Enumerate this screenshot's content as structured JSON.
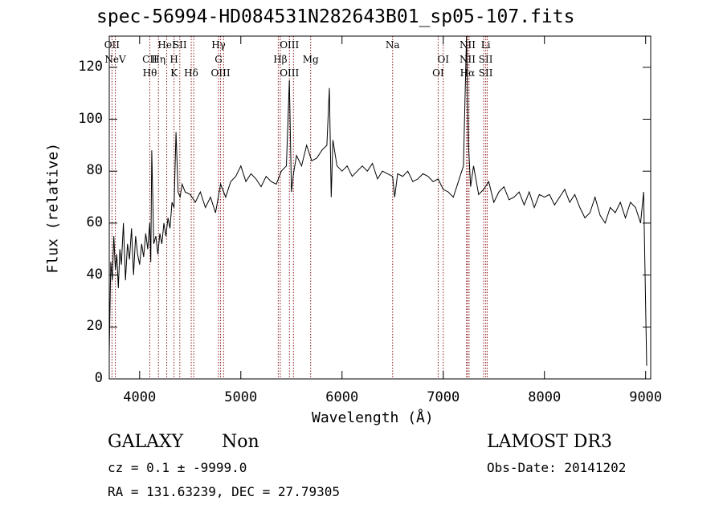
{
  "chart_data": {
    "type": "line",
    "title": "spec-56994-HD084531N282643B01_sp05-107.fits",
    "xlabel": "Wavelength (Å)",
    "ylabel": "Flux (relative)",
    "xlim": [
      3700,
      9050
    ],
    "ylim": [
      0,
      132
    ],
    "x_ticks": [
      4000,
      5000,
      6000,
      7000,
      8000,
      9000
    ],
    "y_ticks": [
      0,
      20,
      40,
      60,
      80,
      100,
      120
    ],
    "grid": false,
    "line_color": "#000000",
    "marker_color": "#8b1a1a",
    "series": [
      {
        "x": [
          3700,
          3715,
          3730,
          3745,
          3760,
          3775,
          3790,
          3805,
          3820,
          3840,
          3860,
          3880,
          3900,
          3920,
          3940,
          3960,
          3980,
          4000,
          4020,
          4040,
          4060,
          4080,
          4100,
          4110,
          4120,
          4140,
          4160,
          4180,
          4200,
          4220,
          4240,
          4260,
          4280,
          4300,
          4320,
          4340,
          4360,
          4380,
          4400,
          4420,
          4450,
          4500,
          4550,
          4600,
          4650,
          4700,
          4750,
          4800,
          4850,
          4900,
          4950,
          5000,
          5050,
          5100,
          5150,
          5200,
          5250,
          5300,
          5350,
          5400,
          5450,
          5480,
          5500,
          5520,
          5550,
          5600,
          5650,
          5700,
          5750,
          5800,
          5850,
          5875,
          5893,
          5910,
          5950,
          6000,
          6050,
          6100,
          6150,
          6200,
          6250,
          6300,
          6350,
          6400,
          6450,
          6500,
          6520,
          6550,
          6600,
          6650,
          6700,
          6750,
          6800,
          6850,
          6900,
          6950,
          7000,
          7050,
          7100,
          7150,
          7200,
          7230,
          7250,
          7270,
          7300,
          7350,
          7400,
          7450,
          7500,
          7550,
          7600,
          7650,
          7700,
          7750,
          7800,
          7850,
          7900,
          7950,
          8000,
          8050,
          8100,
          8150,
          8200,
          8250,
          8300,
          8350,
          8400,
          8450,
          8500,
          8550,
          8600,
          8650,
          8700,
          8750,
          8800,
          8850,
          8900,
          8950,
          8980,
          9000,
          9010
        ],
        "y": [
          10,
          45,
          38,
          55,
          42,
          48,
          35,
          50,
          44,
          60,
          38,
          52,
          46,
          58,
          40,
          55,
          48,
          44,
          52,
          47,
          56,
          50,
          60,
          45,
          88,
          52,
          55,
          48,
          56,
          52,
          60,
          55,
          62,
          58,
          68,
          66,
          95,
          72,
          70,
          75,
          72,
          71,
          68,
          72,
          66,
          70,
          64,
          75,
          70,
          76,
          78,
          82,
          76,
          79,
          77,
          74,
          78,
          76,
          75,
          80,
          82,
          115,
          72,
          79,
          86,
          82,
          90,
          84,
          85,
          88,
          90,
          112,
          70,
          92,
          82,
          80,
          82,
          78,
          80,
          82,
          80,
          83,
          77,
          80,
          79,
          78,
          70,
          79,
          78,
          80,
          76,
          77,
          79,
          78,
          76,
          77,
          73,
          72,
          70,
          76,
          82,
          135,
          90,
          74,
          82,
          71,
          73,
          76,
          68,
          72,
          74,
          69,
          70,
          72,
          67,
          72,
          66,
          71,
          70,
          71,
          67,
          70,
          73,
          68,
          71,
          66,
          62,
          64,
          70,
          63,
          60,
          66,
          64,
          68,
          62,
          68,
          66,
          60,
          72,
          28,
          5
        ]
      }
    ],
    "line_markers": [
      {
        "wave": 3727,
        "row": 1,
        "label": "OII"
      },
      {
        "wave": 3760,
        "row": 2,
        "label": "NeV"
      },
      {
        "wave": 4101,
        "row": 2,
        "label": "CII"
      },
      {
        "wave": 4101,
        "row": 3,
        "label": "Hθ"
      },
      {
        "wave": 4186,
        "row": 2,
        "label": "Hη"
      },
      {
        "wave": 4268,
        "row": 1,
        "label": "HeI"
      },
      {
        "wave": 4340,
        "row": 2,
        "label": "H"
      },
      {
        "wave": 4340,
        "row": 3,
        "label": "K"
      },
      {
        "wave": 4397,
        "row": 1,
        "label": "SII"
      },
      {
        "wave": 4510,
        "row": 3,
        "label": "Hδ"
      },
      {
        "wave": 4780,
        "row": 1,
        "label": "Hγ"
      },
      {
        "wave": 4780,
        "row": 2,
        "label": "G"
      },
      {
        "wave": 4800,
        "row": 3,
        "label": "OIII"
      },
      {
        "wave": 5390,
        "row": 2,
        "label": "Hβ"
      },
      {
        "wave": 5480,
        "row": 1,
        "label": "OIII"
      },
      {
        "wave": 5480,
        "row": 3,
        "label": "OIII"
      },
      {
        "wave": 5690,
        "row": 2,
        "label": "Mg"
      },
      {
        "wave": 6500,
        "row": 1,
        "label": "Na"
      },
      {
        "wave": 6950,
        "row": 3,
        "label": "OI"
      },
      {
        "wave": 7000,
        "row": 2,
        "label": "OI"
      },
      {
        "wave": 7240,
        "row": 1,
        "label": "NII"
      },
      {
        "wave": 7240,
        "row": 2,
        "label": "NII"
      },
      {
        "wave": 7240,
        "row": 3,
        "label": "Hα"
      },
      {
        "wave": 7420,
        "row": 1,
        "label": "Li"
      },
      {
        "wave": 7420,
        "row": 2,
        "label": "SII"
      },
      {
        "wave": 7420,
        "row": 3,
        "label": "SII"
      }
    ],
    "marker_lines": [
      3727,
      3760,
      4101,
      4186,
      4268,
      4340,
      4397,
      4510,
      4535,
      4780,
      4800,
      4830,
      5370,
      5390,
      5480,
      5520,
      5690,
      6500,
      6950,
      7000,
      7230,
      7240,
      7255,
      7400,
      7420,
      7435
    ]
  },
  "footer": {
    "object_class": "GALAXY",
    "subclass": "Non",
    "survey": "LAMOST DR3",
    "cz": "cz = 0.1 ± -9999.0",
    "obs_date": "Obs-Date: 20141202",
    "coords": "RA = 131.63239, DEC =  27.79305"
  }
}
